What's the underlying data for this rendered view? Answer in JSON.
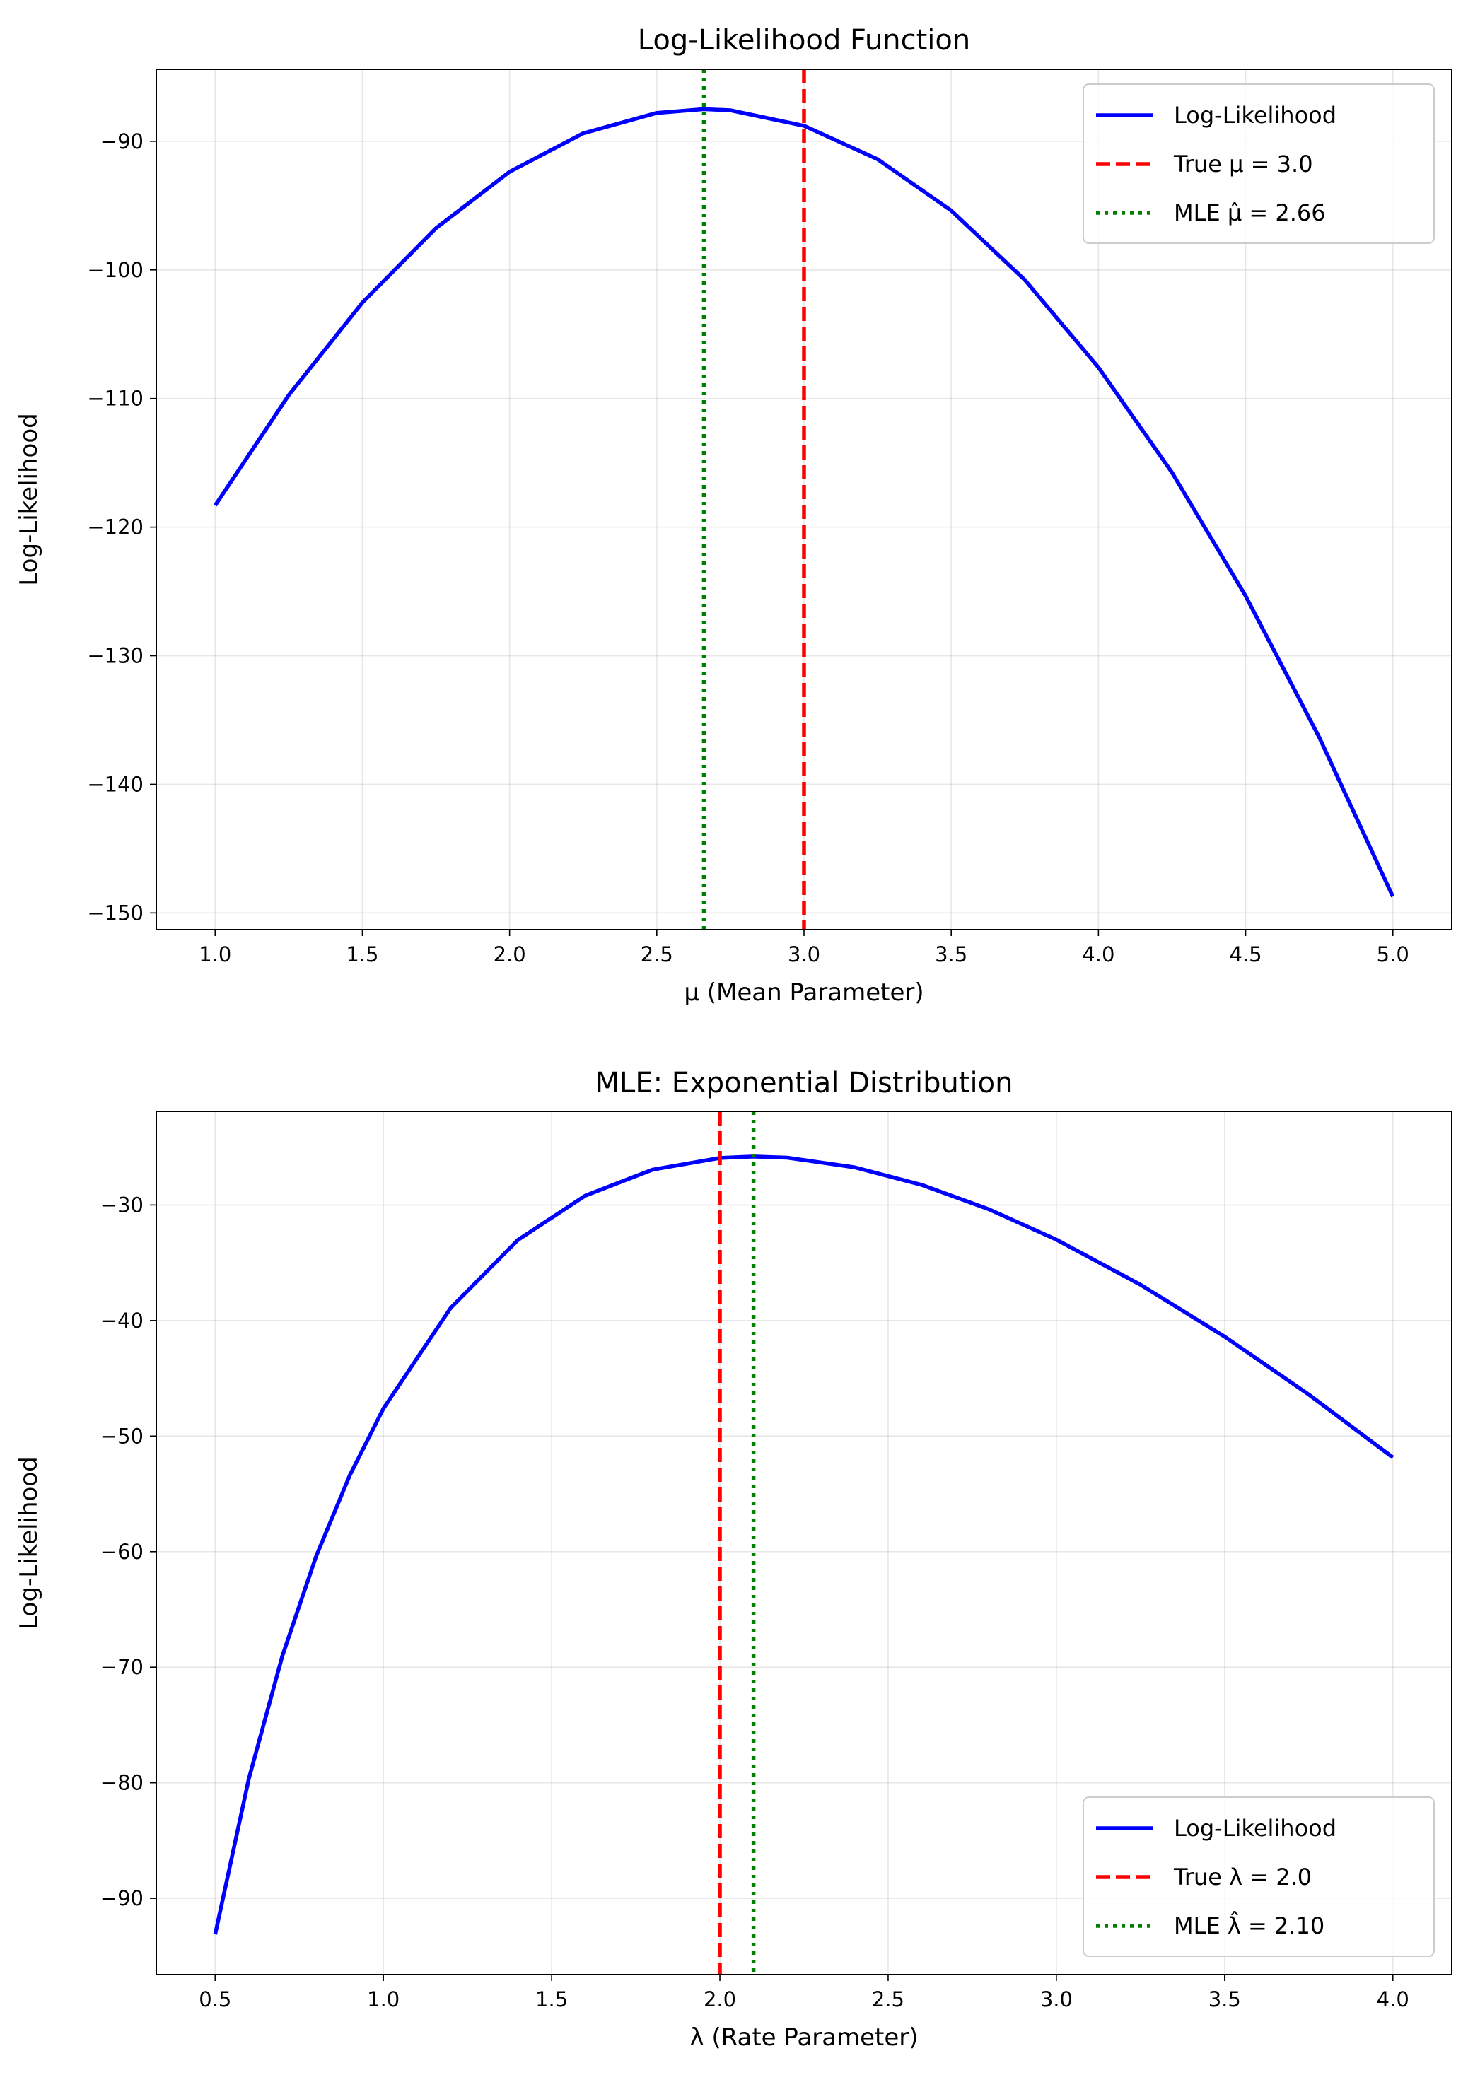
{
  "chart_data": [
    {
      "type": "line",
      "title": "Log-Likelihood Function",
      "xlabel": "μ (Mean Parameter)",
      "ylabel": "Log-Likelihood",
      "xlim": [
        0.8,
        5.2
      ],
      "ylim": [
        -151.3,
        -84.4
      ],
      "xticks": [
        1.0,
        1.5,
        2.0,
        2.5,
        3.0,
        3.5,
        4.0,
        4.5,
        5.0
      ],
      "xtick_labels": [
        "1.0",
        "1.5",
        "2.0",
        "2.5",
        "3.0",
        "3.5",
        "4.0",
        "4.5",
        "5.0"
      ],
      "yticks": [
        -90,
        -100,
        -110,
        -120,
        -130,
        -140,
        -150
      ],
      "ytick_labels": [
        "−90",
        "−100",
        "−110",
        "−120",
        "−130",
        "−140",
        "−150"
      ],
      "grid": true,
      "legend_position": "upper-right",
      "series": [
        {
          "name": "Log-Likelihood",
          "color": "#0000ff",
          "style": "solid",
          "x": [
            1.0,
            1.25,
            1.5,
            1.75,
            2.0,
            2.25,
            2.5,
            2.66,
            2.75,
            3.0,
            3.25,
            3.5,
            3.75,
            4.0,
            4.25,
            4.5,
            4.75,
            5.0
          ],
          "y": [
            -118.31,
            -109.73,
            -102.54,
            -96.76,
            -92.37,
            -89.38,
            -87.79,
            -87.5,
            -87.59,
            -88.79,
            -91.39,
            -95.39,
            -100.78,
            -107.58,
            -115.76,
            -125.35,
            -136.34,
            -148.72
          ]
        }
      ],
      "vlines": [
        {
          "name": "True μ = 3.0",
          "x": 3.0,
          "color": "#ff0000",
          "style": "dashed"
        },
        {
          "name": "MLE μ̂ = 2.66",
          "x": 2.66,
          "color": "#008000",
          "style": "dotted"
        }
      ]
    },
    {
      "type": "line",
      "title": "MLE: Exponential Distribution",
      "xlabel": "λ (Rate Parameter)",
      "ylabel": "Log-Likelihood",
      "xlim": [
        0.325,
        4.175
      ],
      "ylim": [
        -96.6,
        -21.9
      ],
      "xticks": [
        0.5,
        1.0,
        1.5,
        2.0,
        2.5,
        3.0,
        3.5,
        4.0
      ],
      "xtick_labels": [
        "0.5",
        "1.0",
        "1.5",
        "2.0",
        "2.5",
        "3.0",
        "3.5",
        "4.0"
      ],
      "yticks": [
        -30,
        -40,
        -50,
        -60,
        -70,
        -80,
        -90
      ],
      "ytick_labels": [
        "−30",
        "−40",
        "−50",
        "−60",
        "−70",
        "−80",
        "−90"
      ],
      "grid": true,
      "legend_position": "lower-right",
      "series": [
        {
          "name": "Log-Likelihood",
          "color": "#0000ff",
          "style": "solid",
          "x": [
            0.5,
            0.6,
            0.7,
            0.8,
            0.9,
            1.0,
            1.2,
            1.4,
            1.6,
            1.8,
            2.0,
            2.1,
            2.2,
            2.4,
            2.6,
            2.8,
            3.0,
            3.25,
            3.5,
            3.75,
            4.0
          ],
          "y": [
            -93.12,
            -79.65,
            -69.0,
            -60.41,
            -53.4,
            -47.62,
            -38.91,
            -33.02,
            -29.19,
            -26.94,
            -25.93,
            -25.81,
            -25.91,
            -26.74,
            -28.26,
            -30.38,
            -33.0,
            -36.9,
            -41.39,
            -46.4,
            -51.85
          ]
        }
      ],
      "vlines": [
        {
          "name": "True λ = 2.0",
          "x": 2.0,
          "color": "#ff0000",
          "style": "dashed"
        },
        {
          "name": "MLE λ̂ = 2.10",
          "x": 2.1,
          "color": "#008000",
          "style": "dotted"
        }
      ]
    }
  ]
}
